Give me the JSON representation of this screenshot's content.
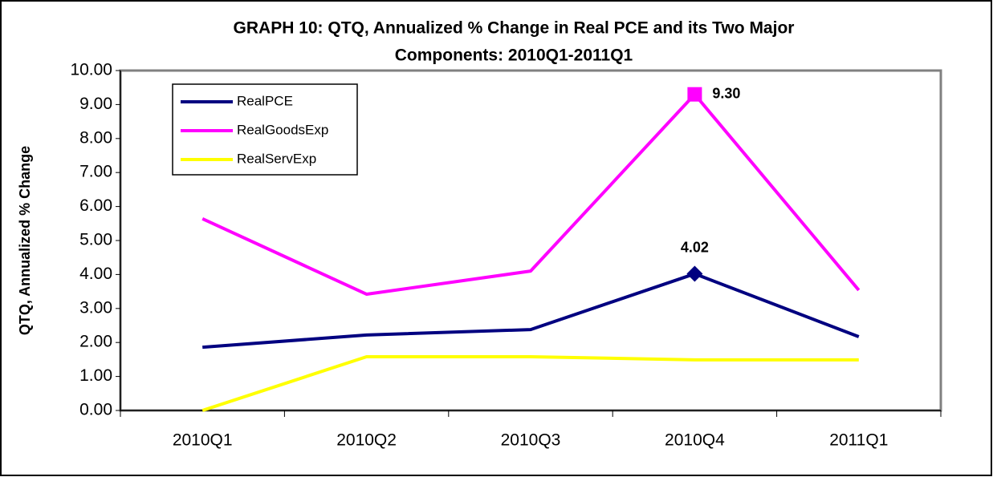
{
  "chart_data": {
    "type": "line",
    "title": [
      "GRAPH 10: QTQ, Annualized % Change in Real PCE and its Two Major",
      "Components: 2010Q1-2011Q1"
    ],
    "y_label": "QTQ, Annualized % Change",
    "categories": [
      "2010Q1",
      "2010Q2",
      "2010Q3",
      "2010Q4",
      "2011Q1"
    ],
    "series": [
      {
        "name": "RealPCE",
        "color": "#000080",
        "marker": "diamond",
        "values": [
          1.86,
          2.22,
          2.38,
          4.02,
          2.17
        ],
        "value_labels": [
          null,
          null,
          null,
          "4.02",
          null
        ]
      },
      {
        "name": "RealGoodsExp",
        "color": "#ff00ff",
        "marker": "square",
        "values": [
          5.64,
          3.42,
          4.1,
          9.3,
          3.54
        ],
        "value_labels": [
          null,
          null,
          null,
          "9.30",
          null
        ]
      },
      {
        "name": "RealServExp",
        "color": "#ffff00",
        "values": [
          0.0,
          1.58,
          1.58,
          1.49,
          1.49
        ]
      }
    ],
    "ylim": [
      0,
      10
    ],
    "yticks": [
      {
        "value": 0,
        "label": "0.00"
      },
      {
        "value": 1,
        "label": "1.00"
      },
      {
        "value": 2,
        "label": "2.00"
      },
      {
        "value": 3,
        "label": "3.00"
      },
      {
        "value": 4,
        "label": "4.00"
      },
      {
        "value": 5,
        "label": "5.00"
      },
      {
        "value": 6,
        "label": "6.00"
      },
      {
        "value": 7,
        "label": "7.00"
      },
      {
        "value": 8,
        "label": "8.00"
      },
      {
        "value": 9,
        "label": "9.00"
      },
      {
        "value": 10,
        "label": "10.00"
      }
    ],
    "legend": "top-left"
  }
}
